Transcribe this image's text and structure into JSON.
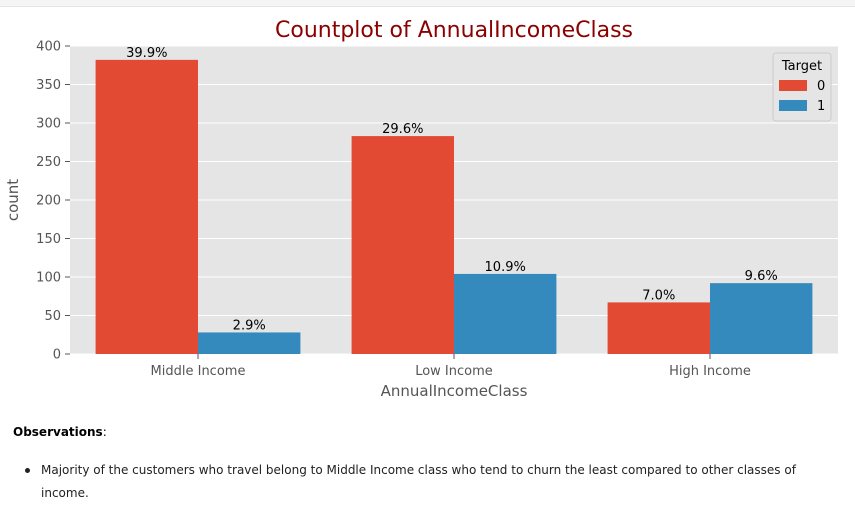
{
  "chart_data": {
    "type": "bar",
    "title": "Countplot of AnnualIncomeClass",
    "xlabel": "AnnualIncomeClass",
    "ylabel": "count",
    "categories": [
      "Middle Income",
      "Low Income",
      "High Income"
    ],
    "series": [
      {
        "name": "0",
        "values": [
          382,
          283,
          67
        ],
        "labels": [
          "39.9%",
          "29.6%",
          "7.0%"
        ],
        "color": "#E24A33"
      },
      {
        "name": "1",
        "values": [
          28,
          104,
          92
        ],
        "labels": [
          "2.9%",
          "10.9%",
          "9.6%"
        ],
        "color": "#348ABD"
      }
    ],
    "ylim": [
      0,
      400
    ],
    "yticks": [
      0,
      50,
      100,
      150,
      200,
      250,
      300,
      350,
      400
    ],
    "legend": {
      "title": "Target",
      "placement": "top-right"
    },
    "grid": true,
    "style": {
      "background": "#E5E5E5",
      "title_color": "#8B0000"
    }
  },
  "observations": {
    "heading": "Observations",
    "heading_suffix": ":",
    "items": [
      "Majority of the customers who travel belong to Middle Income class who tend to churn the least compared to other classes of income."
    ]
  }
}
